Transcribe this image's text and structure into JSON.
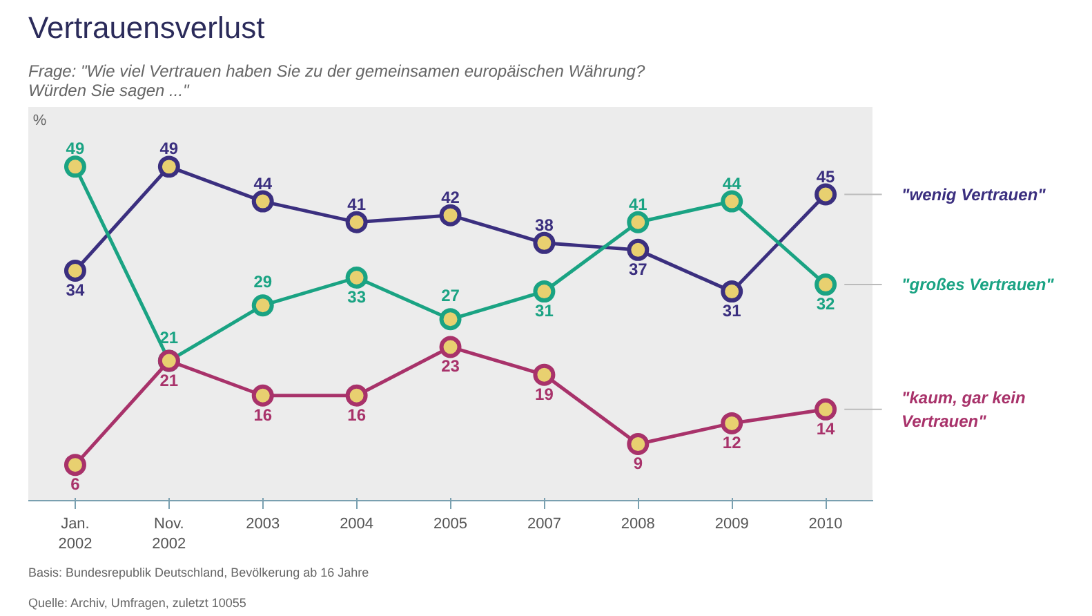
{
  "chart_data": {
    "type": "line",
    "title": "Vertrauensverlust",
    "subtitle": "Frage: \"Wie viel Vertrauen haben Sie zu der gemeinsamen europäischen Währung?\n             Würden Sie sagen ...\"",
    "ylabel": "%",
    "categories": [
      "Jan.\n2002",
      "Nov.\n2002",
      "2003",
      "2004",
      "2005",
      "2007",
      "2008",
      "2009",
      "2010"
    ],
    "series": [
      {
        "name": "\"wenig Vertrauen\"",
        "color": "#3b2f7f",
        "values": [
          34,
          49,
          44,
          41,
          42,
          38,
          37,
          31,
          45
        ]
      },
      {
        "name": "\"großes Vertrauen\"",
        "color": "#1aa383",
        "values": [
          49,
          21,
          29,
          33,
          27,
          31,
          41,
          44,
          32
        ]
      },
      {
        "name": "\"kaum, gar kein\nVertrauen\"",
        "color": "#a8326a",
        "values": [
          6,
          21,
          16,
          16,
          23,
          19,
          9,
          12,
          14
        ]
      }
    ],
    "data_labels": true,
    "marker": "circle",
    "line_style": "solid",
    "grid": false,
    "annotations": [
      "Basis: Bundesrepublik Deutschland, Bevölkerung ab 16 Jahre",
      "Quelle: Archiv, Umfragen, zuletzt 10055"
    ]
  }
}
